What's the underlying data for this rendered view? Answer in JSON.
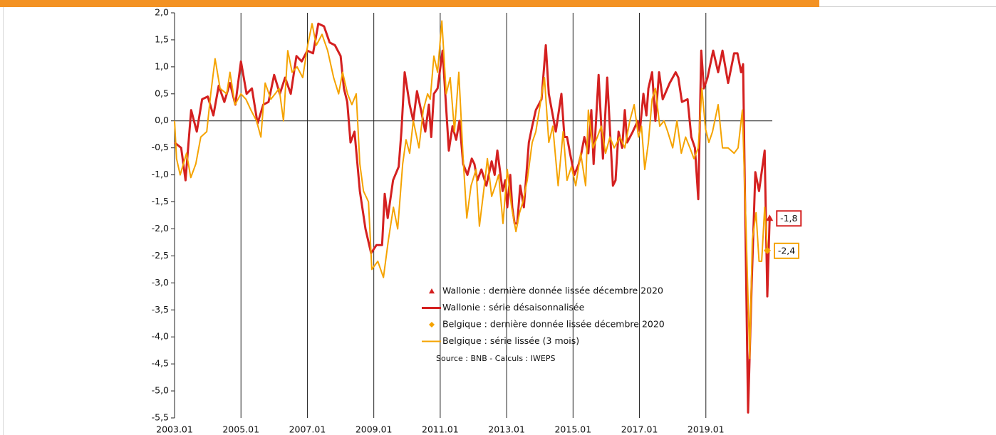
{
  "chart_data": {
    "type": "line",
    "source": "Source : BNB - Calculs : IWEPS",
    "xlim": [
      2003,
      2021
    ],
    "xticks": [
      {
        "value": 2003,
        "label": "2003.01"
      },
      {
        "value": 2005,
        "label": "2005.01"
      },
      {
        "value": 2007,
        "label": "2007.01"
      },
      {
        "value": 2009,
        "label": "2009.01"
      },
      {
        "value": 2011,
        "label": "2011.01"
      },
      {
        "value": 2013,
        "label": "2013.01"
      },
      {
        "value": 2015,
        "label": "2015.01"
      },
      {
        "value": 2017,
        "label": "2017.01"
      },
      {
        "value": 2019,
        "label": "2019.01"
      }
    ],
    "ylim": [
      -5.5,
      2
    ],
    "yticks": [
      {
        "value": 2,
        "label": "2,0"
      },
      {
        "value": 1.5,
        "label": "1,5"
      },
      {
        "value": 1,
        "label": "1,0"
      },
      {
        "value": 0.5,
        "label": "0,5"
      },
      {
        "value": 0,
        "label": "0,0"
      },
      {
        "value": -0.5,
        "label": "-0,5"
      },
      {
        "value": -1,
        "label": "-1,0"
      },
      {
        "value": -1.5,
        "label": "-1,5"
      },
      {
        "value": -2,
        "label": "-2,0"
      },
      {
        "value": -2.5,
        "label": "-2,5"
      },
      {
        "value": -3,
        "label": "-3,0"
      },
      {
        "value": -3.5,
        "label": "-3,5"
      },
      {
        "value": -4,
        "label": "-4,0"
      },
      {
        "value": -4.5,
        "label": "-4,5"
      },
      {
        "value": -5,
        "label": "-5,0"
      },
      {
        "value": -5.5,
        "label": "-5,5"
      }
    ],
    "grid": "x",
    "series": [
      {
        "name": "Wallonie : dernière donnée lissée décembre 2020",
        "color": "#d42020",
        "marker": "triangle",
        "x": [
          2020.92
        ],
        "values": [
          -1.8
        ],
        "value_labels": [
          "-1,8"
        ]
      },
      {
        "name": "Wallonie : série désaisonnalisée",
        "color": "#d42020",
        "marker": "line",
        "width": 3,
        "x": [
          2003.0,
          2003.2,
          2003.33,
          2003.5,
          2003.67,
          2003.83,
          2004.0,
          2004.17,
          2004.33,
          2004.5,
          2004.67,
          2004.83,
          2005.0,
          2005.17,
          2005.33,
          2005.5,
          2005.67,
          2005.83,
          2006.0,
          2006.17,
          2006.33,
          2006.5,
          2006.67,
          2006.83,
          2007.0,
          2007.17,
          2007.33,
          2007.5,
          2007.67,
          2007.83,
          2008.0,
          2008.1,
          2008.2,
          2008.3,
          2008.42,
          2008.58,
          2008.75,
          2008.92,
          2009.08,
          2009.25,
          2009.33,
          2009.42,
          2009.58,
          2009.75,
          2009.83,
          2009.93,
          2010.08,
          2010.19,
          2010.3,
          2010.42,
          2010.55,
          2010.66,
          2010.73,
          2010.81,
          2010.92,
          2011.07,
          2011.26,
          2011.37,
          2011.48,
          2011.58,
          2011.69,
          2011.82,
          2011.95,
          2012.03,
          2012.12,
          2012.24,
          2012.39,
          2012.55,
          2012.64,
          2012.72,
          2012.88,
          2012.96,
          2013.02,
          2013.11,
          2013.17,
          2013.24,
          2013.32,
          2013.41,
          2013.52,
          2013.67,
          2013.77,
          2013.88,
          2014.05,
          2014.18,
          2014.27,
          2014.48,
          2014.65,
          2014.74,
          2014.82,
          2014.91,
          2015.04,
          2015.17,
          2015.25,
          2015.34,
          2015.46,
          2015.55,
          2015.62,
          2015.77,
          2015.9,
          2016.03,
          2016.2,
          2016.28,
          2016.37,
          2016.48,
          2016.56,
          2016.63,
          2016.8,
          2016.95,
          2017.01,
          2017.12,
          2017.21,
          2017.27,
          2017.38,
          2017.48,
          2017.59,
          2017.7,
          2017.91,
          2018.09,
          2018.17,
          2018.28,
          2018.45,
          2018.56,
          2018.67,
          2018.77,
          2018.86,
          2018.94,
          2019.05,
          2019.22,
          2019.37,
          2019.5,
          2019.67,
          2019.85,
          2019.95,
          2020.06,
          2020.12,
          2020.27,
          2020.38,
          2020.49,
          2020.6,
          2020.77,
          2020.85,
          2020.92
        ],
        "values": [
          -0.4,
          -0.5,
          -1.1,
          0.2,
          -0.2,
          0.4,
          0.45,
          0.1,
          0.65,
          0.35,
          0.7,
          0.3,
          1.1,
          0.5,
          0.6,
          -0.05,
          0.3,
          0.35,
          0.85,
          0.5,
          0.8,
          0.5,
          1.2,
          1.1,
          1.3,
          1.25,
          1.8,
          1.75,
          1.45,
          1.4,
          1.2,
          0.6,
          0.35,
          -0.4,
          -0.2,
          -1.3,
          -2.0,
          -2.45,
          -2.3,
          -2.3,
          -1.35,
          -1.8,
          -1.1,
          -0.85,
          -0.2,
          0.9,
          0.3,
          0.0,
          0.55,
          0.2,
          -0.2,
          0.3,
          -0.3,
          0.5,
          0.6,
          1.3,
          -0.55,
          -0.1,
          -0.35,
          0.0,
          -0.8,
          -1.0,
          -0.7,
          -0.8,
          -1.1,
          -0.9,
          -1.2,
          -0.75,
          -1.0,
          -0.55,
          -1.3,
          -1.1,
          -1.6,
          -1.0,
          -1.6,
          -1.9,
          -1.9,
          -1.2,
          -1.6,
          -0.4,
          -0.1,
          0.2,
          0.4,
          1.4,
          0.5,
          -0.2,
          0.5,
          -0.3,
          -0.3,
          -0.6,
          -1.0,
          -0.8,
          -0.6,
          -0.3,
          -0.6,
          0.2,
          -0.8,
          0.85,
          -0.7,
          0.8,
          -1.2,
          -1.1,
          -0.2,
          -0.5,
          0.2,
          -0.4,
          -0.2,
          0.0,
          -0.2,
          0.5,
          0.1,
          0.6,
          0.9,
          0.0,
          0.9,
          0.4,
          0.7,
          0.9,
          0.8,
          0.35,
          0.4,
          -0.3,
          -0.5,
          -1.45,
          1.3,
          0.6,
          0.8,
          1.3,
          0.9,
          1.3,
          0.7,
          1.25,
          1.25,
          0.9,
          1.05,
          -5.4,
          -3.0,
          -0.95,
          -1.3,
          -0.55,
          -3.25,
          -1.8
        ]
      },
      {
        "name": "Belgique : dernière donnée lissée décembre 2020",
        "color": "#f5a300",
        "marker": "diamond",
        "x": [
          2020.85
        ],
        "values": [
          -2.4
        ],
        "value_labels": [
          "-2,4"
        ]
      },
      {
        "name": "Belgique : série lissée (3 mois)",
        "color": "#f5a300",
        "marker": "line",
        "width": 2,
        "x": [
          2003.0,
          2003.06,
          2003.17,
          2003.36,
          2003.49,
          2003.64,
          2003.79,
          2003.97,
          2004.09,
          2004.22,
          2004.37,
          2004.57,
          2004.67,
          2004.82,
          2005.0,
          2005.15,
          2005.3,
          2005.47,
          2005.6,
          2005.73,
          2005.9,
          2006.03,
          2006.15,
          2006.28,
          2006.41,
          2006.54,
          2006.69,
          2006.86,
          2007.01,
          2007.14,
          2007.27,
          2007.44,
          2007.61,
          2007.79,
          2007.94,
          2008.06,
          2008.21,
          2008.34,
          2008.47,
          2008.58,
          2008.69,
          2008.84,
          2008.94,
          2009.12,
          2009.29,
          2009.44,
          2009.59,
          2009.72,
          2009.87,
          2009.97,
          2010.08,
          2010.19,
          2010.36,
          2010.49,
          2010.62,
          2010.7,
          2010.81,
          2010.92,
          2011.05,
          2011.18,
          2011.3,
          2011.43,
          2011.56,
          2011.69,
          2011.8,
          2011.93,
          2012.08,
          2012.18,
          2012.31,
          2012.42,
          2012.55,
          2012.66,
          2012.76,
          2012.89,
          2013.02,
          2013.15,
          2013.28,
          2013.39,
          2013.49,
          2013.62,
          2013.77,
          2013.88,
          2014.01,
          2014.14,
          2014.27,
          2014.39,
          2014.55,
          2014.7,
          2014.82,
          2014.95,
          2015.08,
          2015.23,
          2015.38,
          2015.46,
          2015.6,
          2015.73,
          2015.85,
          2015.98,
          2016.11,
          2016.24,
          2016.41,
          2016.56,
          2016.71,
          2016.84,
          2016.97,
          2017.06,
          2017.16,
          2017.27,
          2017.38,
          2017.48,
          2017.61,
          2017.74,
          2017.85,
          2018.0,
          2018.13,
          2018.26,
          2018.39,
          2018.52,
          2018.64,
          2018.77,
          2018.88,
          2018.99,
          2019.09,
          2019.2,
          2019.37,
          2019.5,
          2019.67,
          2019.85,
          2019.97,
          2020.1,
          2020.21,
          2020.32,
          2020.4,
          2020.51,
          2020.6,
          2020.68,
          2020.77,
          2020.85
        ],
        "values": [
          0.0,
          -0.7,
          -1.0,
          -0.6,
          -1.05,
          -0.8,
          -0.3,
          -0.2,
          0.5,
          1.15,
          0.6,
          0.5,
          0.9,
          0.3,
          0.5,
          0.4,
          0.2,
          0.0,
          -0.3,
          0.7,
          0.4,
          0.5,
          0.6,
          0.0,
          1.3,
          0.9,
          1.0,
          0.8,
          1.4,
          1.8,
          1.4,
          1.6,
          1.3,
          0.8,
          0.5,
          0.9,
          0.5,
          0.3,
          0.5,
          -0.8,
          -1.3,
          -1.5,
          -2.75,
          -2.6,
          -2.9,
          -2.2,
          -1.6,
          -2.0,
          -0.8,
          -0.35,
          -0.6,
          0.0,
          -0.5,
          0.2,
          0.5,
          0.4,
          1.2,
          0.9,
          1.85,
          0.5,
          0.8,
          -0.2,
          0.9,
          -0.7,
          -1.8,
          -1.2,
          -0.9,
          -1.95,
          -1.3,
          -0.7,
          -1.4,
          -1.2,
          -1.0,
          -1.9,
          -0.9,
          -1.6,
          -2.05,
          -1.7,
          -1.5,
          -1.1,
          -0.4,
          -0.2,
          0.3,
          0.8,
          -0.4,
          -0.1,
          -1.2,
          -0.2,
          -1.1,
          -0.85,
          -1.2,
          -0.6,
          -1.2,
          0.2,
          -0.5,
          -0.3,
          -0.1,
          -0.6,
          -0.3,
          -0.5,
          -0.3,
          -0.5,
          0.0,
          0.3,
          -0.3,
          -0.1,
          -0.9,
          -0.4,
          0.4,
          0.6,
          -0.1,
          0.0,
          -0.2,
          -0.5,
          0.0,
          -0.6,
          -0.3,
          -0.5,
          -0.7,
          -0.5,
          0.6,
          -0.15,
          -0.4,
          -0.2,
          0.3,
          -0.5,
          -0.5,
          -0.6,
          -0.5,
          0.2,
          -2.0,
          -4.4,
          -2.2,
          -1.7,
          -2.6,
          -2.6,
          -1.6,
          -2.4
        ]
      }
    ]
  }
}
